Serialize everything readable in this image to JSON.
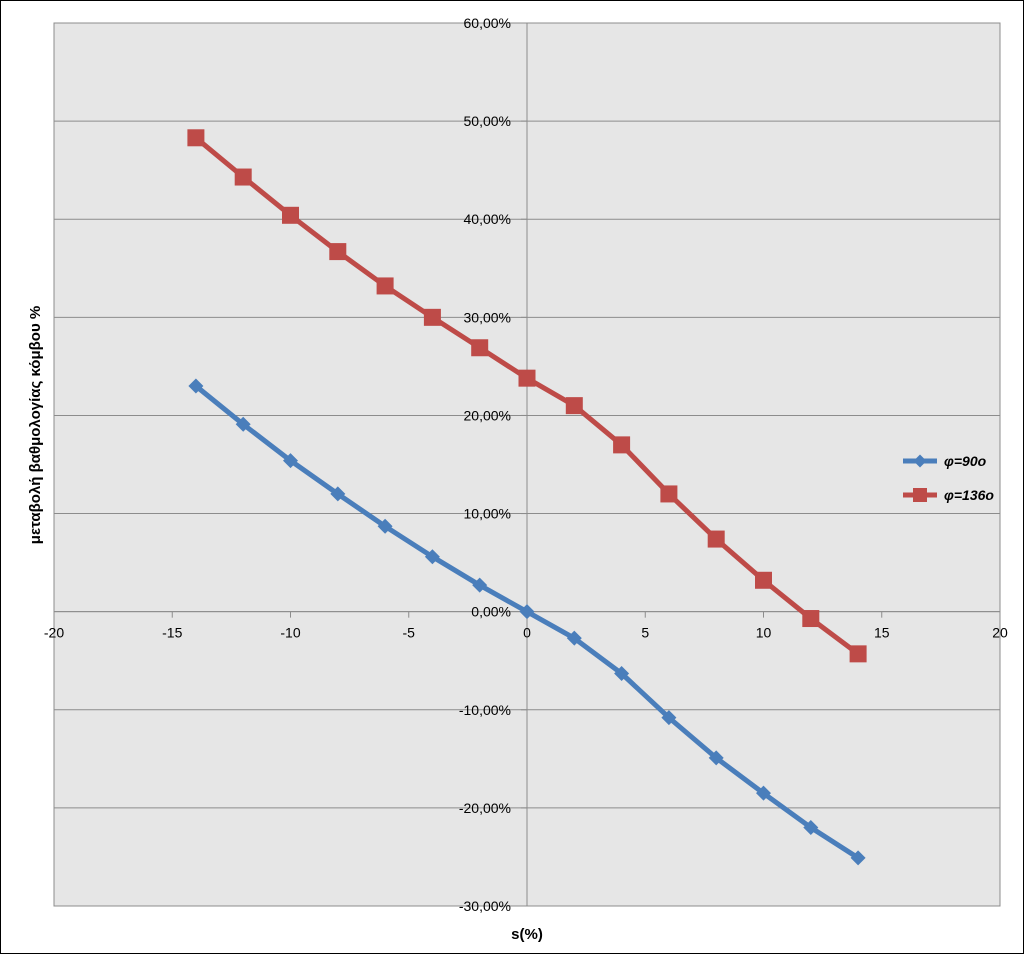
{
  "chart_data": {
    "type": "line",
    "title": "",
    "xlabel": "s(%)",
    "ylabel": "μεταβολή βαθμολογίας κόμβου %",
    "xlim": [
      -20,
      20
    ],
    "ylim": [
      -30,
      60
    ],
    "x_ticks": [
      -20,
      -15,
      -10,
      -5,
      0,
      5,
      10,
      15,
      20
    ],
    "x_tick_labels": [
      "-20",
      "-15",
      "-10",
      "-5",
      "0",
      "5",
      "10",
      "15",
      "20"
    ],
    "y_ticks": [
      60,
      50,
      40,
      30,
      20,
      10,
      0,
      -10,
      -20,
      -30
    ],
    "y_tick_labels": [
      "60,00%",
      "50,00%",
      "40,00%",
      "30,00%",
      "20,00%",
      "10,00%",
      "0,00%",
      "-10,00%",
      "-20,00%",
      "-30,00%"
    ],
    "grid": true,
    "legend_position": "right",
    "series": [
      {
        "name": "φ=90o",
        "color": "#4a7ebb",
        "marker": "diamond",
        "x": [
          -14,
          -12,
          -10,
          -8,
          -6,
          -4,
          -2,
          0,
          2,
          4,
          6,
          8,
          10,
          12,
          14
        ],
        "y": [
          23.0,
          19.1,
          15.4,
          12.0,
          8.7,
          5.6,
          2.7,
          0.0,
          -2.7,
          -6.3,
          -10.8,
          -14.9,
          -18.5,
          -22.0,
          -25.1
        ]
      },
      {
        "name": "φ=136o",
        "color": "#be4b48",
        "marker": "square",
        "x": [
          -14,
          -12,
          -10,
          -8,
          -6,
          -4,
          -2,
          0,
          2,
          4,
          6,
          8,
          10,
          12,
          14
        ],
        "y": [
          48.3,
          44.3,
          40.4,
          36.7,
          33.2,
          30.0,
          26.9,
          23.8,
          21.0,
          17.0,
          12.0,
          7.4,
          3.2,
          -0.7,
          -4.3
        ]
      }
    ]
  }
}
